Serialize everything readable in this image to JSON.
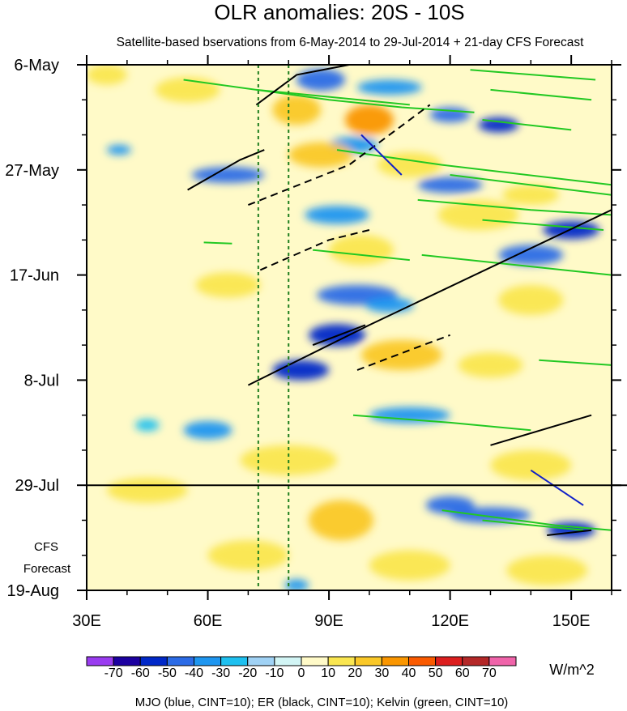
{
  "chart_data": {
    "type": "heatmap",
    "title": "OLR anomalies: 20S - 10S",
    "subtitle": "Satellite-based bservations from 6-May-2014 to 29-Jul-2014 + 21-day CFS Forecast",
    "x_range_deg": [
      30,
      160
    ],
    "x_ticks": [
      {
        "label": "30E",
        "value": 30
      },
      {
        "label": "60E",
        "value": 60
      },
      {
        "label": "90E",
        "value": 90
      },
      {
        "label": "120E",
        "value": 120
      },
      {
        "label": "150E",
        "value": 150
      }
    ],
    "y_range_days": [
      0,
      105
    ],
    "y_ticks": [
      {
        "label": "6-May",
        "day": 0
      },
      {
        "label": "27-May",
        "day": 21
      },
      {
        "label": "17-Jun",
        "day": 42
      },
      {
        "label": "8-Jul",
        "day": 63
      },
      {
        "label": "29-Jul",
        "day": 84
      },
      {
        "label": "19-Aug",
        "day": 105
      }
    ],
    "forecast_start_day": 84,
    "forecast_label_line1": "CFS",
    "forecast_label_line2": "Forecast",
    "reference_lines_deg": [
      72.5,
      80
    ],
    "colorbar": {
      "levels": [
        "-70",
        "-60",
        "-50",
        "-40",
        "-30",
        "-20",
        "-10",
        "0",
        "10",
        "20",
        "30",
        "40",
        "50",
        "60",
        "70"
      ],
      "colors": [
        "#9a3cf0",
        "#1c00a0",
        "#0028c8",
        "#2b6be6",
        "#1e96f0",
        "#1ec0f0",
        "#a0d2f5",
        "#d2f5f5",
        "#fffac8",
        "#fae650",
        "#fac828",
        "#fa9600",
        "#fa5a00",
        "#dc1e1e",
        "#b42828",
        "#f064aa"
      ],
      "units": "W/m^2"
    },
    "footer": "MJO (blue, CINT=10); ER (black, CINT=10); Kelvin (green, CINT=10)",
    "contour_colors": {
      "mjo": "#1020c8",
      "er": "#000000",
      "kelvin": "#22c822",
      "ref": "#207f20"
    },
    "anomaly_blobs": [
      {
        "lon": 88,
        "day": 3,
        "rlon": 6,
        "rday": 2.2,
        "value": -45
      },
      {
        "lon": 105,
        "day": 4.5,
        "rlon": 8,
        "rday": 1.5,
        "value": -35
      },
      {
        "lon": 120,
        "day": 10,
        "rlon": 5,
        "rday": 1.5,
        "value": -40
      },
      {
        "lon": 132,
        "day": 12,
        "rlon": 5,
        "rday": 1.5,
        "value": -55
      },
      {
        "lon": 65,
        "day": 22,
        "rlon": 9,
        "rday": 1.6,
        "value": -45
      },
      {
        "lon": 96,
        "day": 16,
        "rlon": 6,
        "rday": 1.6,
        "value": -35
      },
      {
        "lon": 120,
        "day": 24,
        "rlon": 8,
        "rday": 1.6,
        "value": -40
      },
      {
        "lon": 150,
        "day": 33,
        "rlon": 7,
        "rday": 1.8,
        "value": -55
      },
      {
        "lon": 140,
        "day": 38,
        "rlon": 8,
        "rday": 2,
        "value": -45
      },
      {
        "lon": 97,
        "day": 46,
        "rlon": 10,
        "rday": 2,
        "value": -40
      },
      {
        "lon": 92,
        "day": 54,
        "rlon": 7,
        "rday": 2.2,
        "value": -50
      },
      {
        "lon": 83,
        "day": 61,
        "rlon": 7,
        "rday": 2,
        "value": -50
      },
      {
        "lon": 105,
        "day": 48,
        "rlon": 6,
        "rday": 1.5,
        "value": -35
      },
      {
        "lon": 92,
        "day": 30,
        "rlon": 8,
        "rday": 1.8,
        "value": -30
      },
      {
        "lon": 60,
        "day": 73,
        "rlon": 6,
        "rday": 1.8,
        "value": -30
      },
      {
        "lon": 110,
        "day": 70,
        "rlon": 10,
        "rday": 1.6,
        "value": -30
      },
      {
        "lon": 130,
        "day": 90,
        "rlon": 10,
        "rday": 1.6,
        "value": -45
      },
      {
        "lon": 150,
        "day": 93,
        "rlon": 6,
        "rday": 1.6,
        "value": -55
      },
      {
        "lon": 120,
        "day": 88,
        "rlon": 6,
        "rday": 1.8,
        "value": -40
      },
      {
        "lon": 82,
        "day": 104,
        "rlon": 3,
        "rday": 1.2,
        "value": -35
      },
      {
        "lon": 38,
        "day": 17,
        "rlon": 3,
        "rday": 1,
        "value": -30
      },
      {
        "lon": 45,
        "day": 72,
        "rlon": 3,
        "rday": 1.2,
        "value": -25
      },
      {
        "lon": 82,
        "day": 9,
        "rlon": 6,
        "rday": 3,
        "value": 25
      },
      {
        "lon": 100,
        "day": 11,
        "rlon": 6,
        "rday": 3,
        "value": 35
      },
      {
        "lon": 88,
        "day": 18,
        "rlon": 8,
        "rday": 2.5,
        "value": 25
      },
      {
        "lon": 110,
        "day": 20,
        "rlon": 8,
        "rday": 2.5,
        "value": 20
      },
      {
        "lon": 127,
        "day": 30,
        "rlon": 10,
        "rday": 3,
        "value": 20
      },
      {
        "lon": 140,
        "day": 26,
        "rlon": 7,
        "rday": 2,
        "value": 20
      },
      {
        "lon": 98,
        "day": 37,
        "rlon": 8,
        "rday": 3,
        "value": 20
      },
      {
        "lon": 140,
        "day": 47,
        "rlon": 8,
        "rday": 3,
        "value": 20
      },
      {
        "lon": 108,
        "day": 58,
        "rlon": 10,
        "rday": 3,
        "value": 25
      },
      {
        "lon": 130,
        "day": 60,
        "rlon": 8,
        "rday": 2.5,
        "value": 20
      },
      {
        "lon": 80,
        "day": 79,
        "rlon": 12,
        "rday": 3,
        "value": 15
      },
      {
        "lon": 93,
        "day": 91,
        "rlon": 8,
        "rday": 4,
        "value": 25
      },
      {
        "lon": 140,
        "day": 80,
        "rlon": 10,
        "rday": 3,
        "value": 15
      },
      {
        "lon": 55,
        "day": 5,
        "rlon": 8,
        "rday": 2.5,
        "value": 15
      },
      {
        "lon": 35,
        "day": 2,
        "rlon": 5,
        "rday": 2,
        "value": 15
      },
      {
        "lon": 65,
        "day": 44,
        "rlon": 8,
        "rday": 2.5,
        "value": 15
      },
      {
        "lon": 70,
        "day": 98,
        "rlon": 10,
        "rday": 3,
        "value": 15
      },
      {
        "lon": 110,
        "day": 100,
        "rlon": 10,
        "rday": 3,
        "value": 15
      },
      {
        "lon": 144,
        "day": 101,
        "rlon": 10,
        "rday": 3,
        "value": 20
      },
      {
        "lon": 45,
        "day": 85,
        "rlon": 10,
        "rday": 2.5,
        "value": 15
      }
    ],
    "contours": {
      "kelvin": [
        [
          [
            54,
            3
          ],
          [
            90,
            7
          ],
          [
            108,
            8.5
          ],
          [
            126,
            9.5
          ]
        ],
        [
          [
            72,
            5
          ],
          [
            110,
            8
          ]
        ],
        [
          [
            125,
            1
          ],
          [
            156,
            3
          ]
        ],
        [
          [
            130,
            5
          ],
          [
            155,
            7
          ]
        ],
        [
          [
            128,
            11
          ],
          [
            150,
            13
          ]
        ],
        [
          [
            92,
            17
          ],
          [
            118,
            20
          ],
          [
            160,
            24
          ]
        ],
        [
          [
            120,
            22
          ],
          [
            160,
            26
          ]
        ],
        [
          [
            112,
            27
          ],
          [
            140,
            29
          ],
          [
            160,
            30
          ]
        ],
        [
          [
            128,
            31
          ],
          [
            158,
            33
          ]
        ],
        [
          [
            113,
            38
          ],
          [
            148,
            41
          ],
          [
            160,
            42
          ]
        ],
        [
          [
            86,
            37
          ],
          [
            110,
            39
          ]
        ],
        [
          [
            142,
            59
          ],
          [
            160,
            60
          ]
        ],
        [
          [
            96,
            70
          ],
          [
            120,
            71.5
          ],
          [
            140,
            73
          ]
        ],
        [
          [
            118,
            89
          ],
          [
            146,
            92
          ],
          [
            160,
            93
          ]
        ],
        [
          [
            128,
            91
          ],
          [
            153,
            93
          ]
        ],
        [
          [
            59,
            35.5
          ],
          [
            66,
            35.7
          ]
        ]
      ],
      "er": [
        [
          [
            72,
            8
          ],
          [
            82,
            2
          ],
          [
            95,
            0
          ]
        ],
        [
          [
            55,
            25
          ],
          [
            68,
            19
          ],
          [
            74,
            17
          ]
        ],
        [
          [
            70,
            64
          ],
          [
            100,
            52
          ],
          [
            160,
            29
          ]
        ],
        [
          [
            86,
            56
          ],
          [
            99,
            52
          ]
        ],
        [
          [
            130,
            76
          ],
          [
            155,
            70
          ]
        ],
        [
          [
            144,
            94
          ],
          [
            155,
            93
          ]
        ]
      ],
      "er_dashed": [
        [
          [
            70,
            28
          ],
          [
            95,
            20
          ],
          [
            115,
            8
          ]
        ],
        [
          [
            73,
            41
          ],
          [
            90,
            35
          ],
          [
            100,
            33
          ]
        ],
        [
          [
            97,
            61
          ],
          [
            110,
            57
          ],
          [
            120,
            54
          ]
        ]
      ],
      "mjo": [
        [
          [
            98,
            14
          ],
          [
            108,
            22
          ]
        ],
        [
          [
            140,
            81
          ],
          [
            153,
            88
          ]
        ]
      ]
    }
  }
}
